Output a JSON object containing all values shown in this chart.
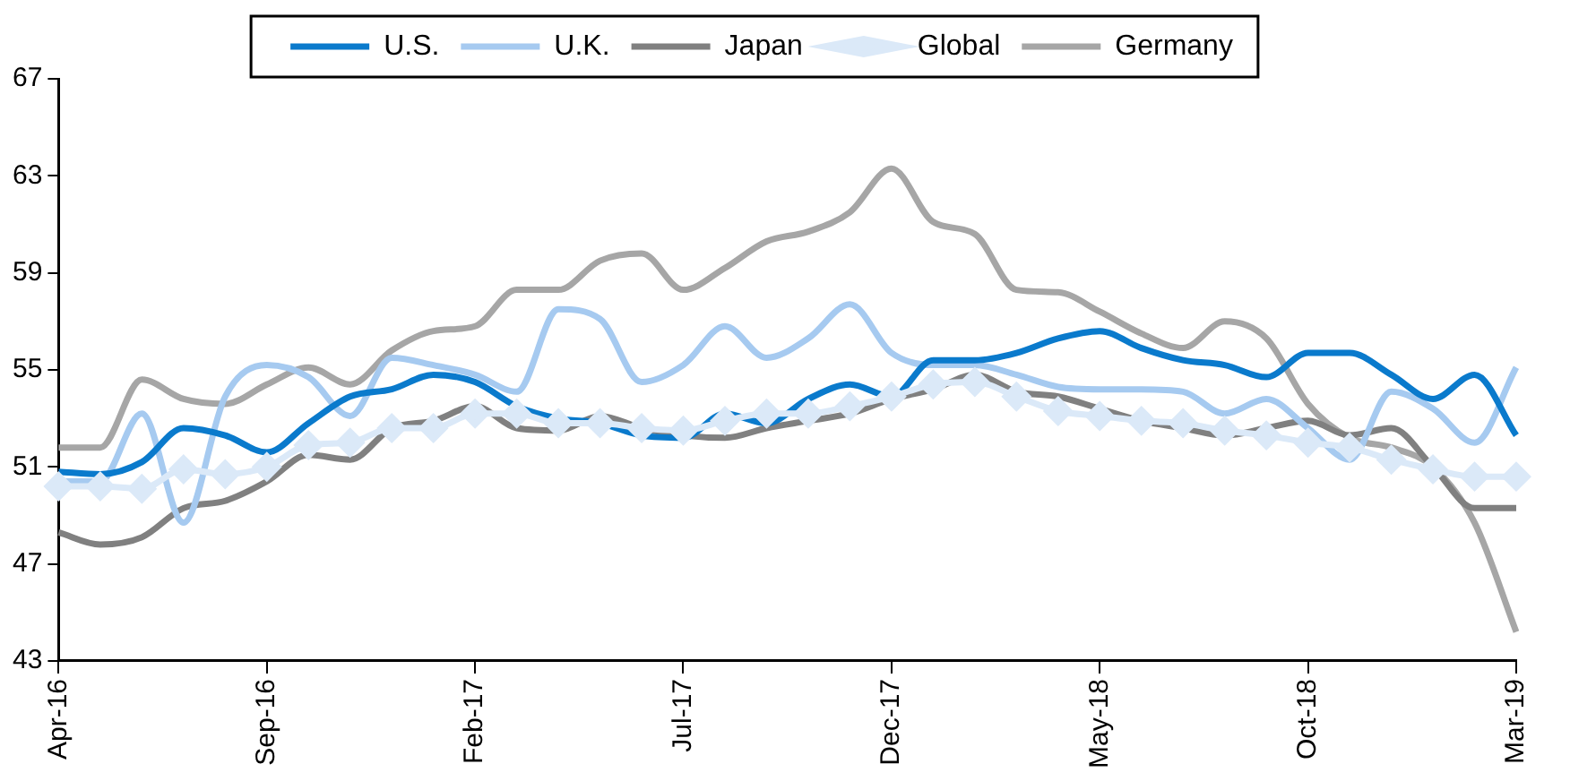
{
  "chart_data": {
    "type": "line",
    "categories": [
      "Apr-16",
      null,
      null,
      null,
      null,
      "Sep-16",
      null,
      null,
      null,
      null,
      "Feb-17",
      null,
      null,
      null,
      null,
      "Jul-17",
      null,
      null,
      null,
      null,
      "Dec-17",
      null,
      null,
      null,
      null,
      "May-18",
      null,
      null,
      null,
      null,
      "Oct-18",
      null,
      null,
      null,
      null,
      "Mar-19"
    ],
    "series": [
      {
        "name": "U.S.",
        "color": "#0a7acc",
        "marker": "none",
        "values": [
          50.8,
          50.7,
          51.2,
          52.6,
          52.3,
          51.6,
          52.8,
          53.9,
          54.2,
          54.8,
          54.5,
          53.5,
          53.0,
          52.8,
          52.3,
          52.2,
          53.2,
          52.8,
          53.8,
          54.4,
          53.9,
          55.4,
          55.4,
          55.7,
          56.3,
          56.6,
          55.9,
          55.4,
          55.2,
          54.7,
          55.7,
          55.7,
          54.8,
          53.8,
          54.8,
          52.3
        ]
      },
      {
        "name": "U.K.",
        "color": "#a6caf0",
        "marker": "none",
        "values": [
          50.4,
          50.4,
          53.2,
          48.7,
          53.9,
          55.2,
          54.7,
          53.1,
          55.5,
          55.2,
          54.8,
          54.1,
          57.5,
          57.1,
          54.5,
          55.2,
          56.8,
          55.5,
          56.3,
          57.7,
          55.7,
          55.2,
          55.2,
          54.8,
          54.3,
          54.2,
          54.2,
          54.1,
          53.2,
          53.8,
          52.6,
          51.3,
          54.1,
          53.4,
          52.0,
          55.1
        ]
      },
      {
        "name": "Japan",
        "color": "#808080",
        "marker": "none",
        "values": [
          48.3,
          47.8,
          48.1,
          49.3,
          49.6,
          50.4,
          51.5,
          51.3,
          52.6,
          52.9,
          53.5,
          52.6,
          52.5,
          53.1,
          52.6,
          52.3,
          52.2,
          52.6,
          52.9,
          53.2,
          53.8,
          54.2,
          54.8,
          54.1,
          53.9,
          53.4,
          52.9,
          52.6,
          52.3,
          52.6,
          52.9,
          52.3,
          52.6,
          51.0,
          49.3,
          49.3
        ]
      },
      {
        "name": "Global",
        "color": "#dbe9f8",
        "marker": "diamond",
        "values": [
          50.2,
          50.2,
          50.1,
          50.9,
          50.7,
          51.0,
          51.9,
          52.0,
          52.6,
          52.6,
          53.2,
          53.2,
          52.8,
          52.8,
          52.6,
          52.5,
          52.9,
          53.2,
          53.2,
          53.5,
          53.9,
          54.4,
          54.5,
          53.9,
          53.3,
          53.1,
          52.9,
          52.8,
          52.5,
          52.3,
          52.0,
          51.8,
          51.3,
          50.9,
          50.6,
          50.6
        ]
      },
      {
        "name": "Germany",
        "color": "#a6a6a6",
        "marker": "none",
        "values": [
          51.8,
          51.8,
          54.6,
          53.8,
          53.6,
          54.4,
          55.1,
          54.4,
          55.8,
          56.6,
          56.8,
          58.3,
          58.3,
          59.5,
          59.8,
          58.3,
          59.2,
          60.3,
          60.7,
          61.5,
          63.3,
          61.1,
          60.6,
          58.3,
          58.2,
          57.4,
          56.5,
          55.9,
          57.0,
          56.3,
          53.6,
          52.2,
          51.8,
          51.0,
          48.7,
          44.2
        ]
      }
    ],
    "ylim": [
      43,
      67
    ],
    "yticks": [
      43,
      47,
      51,
      55,
      59,
      63,
      67
    ],
    "grid": false,
    "legend": "top",
    "line_style": "solid"
  }
}
